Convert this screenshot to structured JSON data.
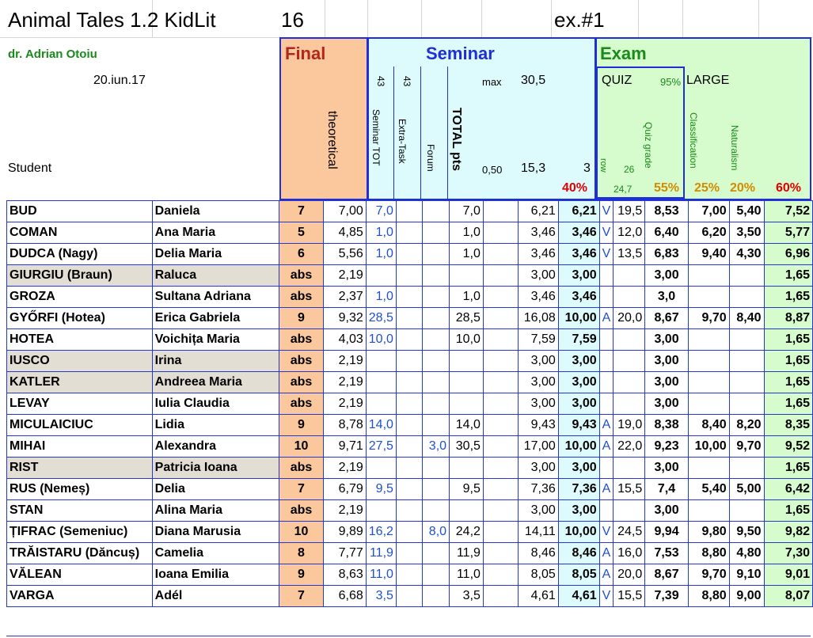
{
  "sheet": {
    "title": "Animal Tales 1.2  KidLit",
    "title_num": "16",
    "exam_id": "ex.#1",
    "teacher": "dr. Adrian Otoiu",
    "date": "20.iun.17",
    "student_label": "Student"
  },
  "headers": {
    "final": "Final",
    "theoretical": "theoretical",
    "seminar": "Seminar",
    "seminar_tot_num": "43",
    "seminar_tot": "Seminar TOT",
    "extra_num": "43",
    "extra_task": "Extra-Task",
    "forum": "Forum",
    "total_pts": "TOTAL pts",
    "max_label": "max",
    "max_value": "30,5",
    "min_ratio": "0,50",
    "mid_value": "15,3",
    "three": "3",
    "seminar_pct": "40%",
    "exam": "Exam",
    "quiz": "QUIZ",
    "quiz_pct_top": "95%",
    "large": "LARGE",
    "row": "row",
    "quiz_26": "26",
    "quiz_grade": "Quiz grade",
    "quiz_247": "24,7",
    "quiz_pct": "55%",
    "classification": "Classification",
    "naturalism": "Naturalism",
    "class_pct": "25%",
    "nat_pct": "20%",
    "exam_pct": "60%"
  },
  "rows": [
    {
      "surname": "BUD",
      "first": "Daniela",
      "final": "7",
      "theo": "7,00",
      "sem": "7,0",
      "extra": "",
      "forum": "",
      "total": "7,0",
      "s1": "6,21",
      "s2": "6,21",
      "q1": "V",
      "q2": "19,5",
      "quiz": "8,53",
      "cls": "7,00",
      "nat": "5,40",
      "fg": "7,52",
      "absent": false
    },
    {
      "surname": "COMAN",
      "first": "Ana Maria",
      "final": "5",
      "theo": "4,85",
      "sem": "1,0",
      "extra": "",
      "forum": "",
      "total": "1,0",
      "s1": "3,46",
      "s2": "3,46",
      "q1": "V",
      "q2": "12,0",
      "quiz": "6,40",
      "cls": "6,20",
      "nat": "3,50",
      "fg": "5,77",
      "absent": false
    },
    {
      "surname": "DUDCA  (Nagy)",
      "first": "Delia Maria",
      "final": "6",
      "theo": "5,56",
      "sem": "1,0",
      "extra": "",
      "forum": "",
      "total": "1,0",
      "s1": "3,46",
      "s2": "3,46",
      "q1": "V",
      "q2": "13,5",
      "quiz": "6,83",
      "cls": "9,40",
      "nat": "4,30",
      "fg": "6,96",
      "absent": false
    },
    {
      "surname": "GIURGIU (Braun)",
      "first": "Raluca",
      "final": "abs",
      "theo": "2,19",
      "sem": "",
      "extra": "",
      "forum": "",
      "total": "",
      "s1": "3,00",
      "s2": "3,00",
      "q1": "",
      "q2": "",
      "quiz": "3,00",
      "cls": "",
      "nat": "",
      "fg": "1,65",
      "absent": true
    },
    {
      "surname": "GROZA",
      "first": "Sultana Adriana",
      "final": "abs",
      "theo": "2,37",
      "sem": "1,0",
      "extra": "",
      "forum": "",
      "total": "1,0",
      "s1": "3,46",
      "s2": "3,46",
      "q1": "",
      "q2": "",
      "quiz": "3,0",
      "cls": "",
      "nat": "",
      "fg": "1,65",
      "absent": false
    },
    {
      "surname": "GYŐRFI (Hotea)",
      "first": "Erica Gabriela",
      "final": "9",
      "theo": "9,32",
      "sem": "28,5",
      "extra": "",
      "forum": "",
      "total": "28,5",
      "s1": "16,08",
      "s2": "10,00",
      "q1": "A",
      "q2": "20,0",
      "quiz": "8,67",
      "cls": "9,70",
      "nat": "8,40",
      "fg": "8,87",
      "absent": false
    },
    {
      "surname": "HOTEA",
      "first": "Voichița Maria",
      "final": "abs",
      "theo": "4,03",
      "sem": "10,0",
      "extra": "",
      "forum": "",
      "total": "10,0",
      "s1": "7,59",
      "s2": "7,59",
      "q1": "",
      "q2": "",
      "quiz": "3,00",
      "cls": "",
      "nat": "",
      "fg": "1,65",
      "absent": false
    },
    {
      "surname": "IUSCO",
      "first": "Irina",
      "final": "abs",
      "theo": "2,19",
      "sem": "",
      "extra": "",
      "forum": "",
      "total": "",
      "s1": "3,00",
      "s2": "3,00",
      "q1": "",
      "q2": "",
      "quiz": "3,00",
      "cls": "",
      "nat": "",
      "fg": "1,65",
      "absent": true
    },
    {
      "surname": "KATLER",
      "first": "Andreea Maria",
      "final": "abs",
      "theo": "2,19",
      "sem": "",
      "extra": "",
      "forum": "",
      "total": "",
      "s1": "3,00",
      "s2": "3,00",
      "q1": "",
      "q2": "",
      "quiz": "3,00",
      "cls": "",
      "nat": "",
      "fg": "1,65",
      "absent": true
    },
    {
      "surname": "LEVAY",
      "first": "Iulia Claudia",
      "final": "abs",
      "theo": "2,19",
      "sem": "",
      "extra": "",
      "forum": "",
      "total": "",
      "s1": "3,00",
      "s2": "3,00",
      "q1": "",
      "q2": "",
      "quiz": "3,00",
      "cls": "",
      "nat": "",
      "fg": "1,65",
      "absent": false
    },
    {
      "surname": "MICULAICIUC",
      "first": "Lidia",
      "final": "9",
      "theo": "8,78",
      "sem": "14,0",
      "extra": "",
      "forum": "",
      "total": "14,0",
      "s1": "9,43",
      "s2": "9,43",
      "q1": "A",
      "q2": "19,0",
      "quiz": "8,38",
      "cls": "8,40",
      "nat": "8,20",
      "fg": "8,35",
      "absent": false
    },
    {
      "surname": "MIHAI",
      "first": "Alexandra",
      "final": "10",
      "theo": "9,71",
      "sem": "27,5",
      "extra": "",
      "forum": "3,0",
      "total": "30,5",
      "s1": "17,00",
      "s2": "10,00",
      "q1": "A",
      "q2": "22,0",
      "quiz": "9,23",
      "cls": "10,00",
      "nat": "9,70",
      "fg": "9,52",
      "absent": false
    },
    {
      "surname": "RIST",
      "first": "Patricia Ioana",
      "final": "abs",
      "theo": "2,19",
      "sem": "",
      "extra": "",
      "forum": "",
      "total": "",
      "s1": "3,00",
      "s2": "3,00",
      "q1": "",
      "q2": "",
      "quiz": "3,00",
      "cls": "",
      "nat": "",
      "fg": "1,65",
      "absent": true
    },
    {
      "surname": "RUS (Nemeș)",
      "first": "Delia",
      "final": "7",
      "theo": "6,79",
      "sem": "9,5",
      "extra": "",
      "forum": "",
      "total": "9,5",
      "s1": "7,36",
      "s2": "7,36",
      "q1": "A",
      "q2": "15,5",
      "quiz": "7,4",
      "cls": "5,40",
      "nat": "5,00",
      "fg": "6,42",
      "absent": false
    },
    {
      "surname": "STAN",
      "first": "Alina Maria",
      "final": "abs",
      "theo": "2,19",
      "sem": "",
      "extra": "",
      "forum": "",
      "total": "",
      "s1": "3,00",
      "s2": "3,00",
      "q1": "",
      "q2": "",
      "quiz": "3,00",
      "cls": "",
      "nat": "",
      "fg": "1,65",
      "absent": false
    },
    {
      "surname": "ȚIFRAC (Semeniuc)",
      "first": "Diana Marusia",
      "final": "10",
      "theo": "9,89",
      "sem": "16,2",
      "extra": "",
      "forum": "8,0",
      "total": "24,2",
      "s1": "14,11",
      "s2": "10,00",
      "q1": "V",
      "q2": "24,5",
      "quiz": "9,94",
      "cls": "9,80",
      "nat": "9,50",
      "fg": "9,82",
      "absent": false
    },
    {
      "surname": "TRĂISTARU (Dăncuș)",
      "first": "Camelia",
      "final": "8",
      "theo": "7,77",
      "sem": "11,9",
      "extra": "",
      "forum": "",
      "total": "11,9",
      "s1": "8,46",
      "s2": "8,46",
      "q1": "A",
      "q2": "16,0",
      "quiz": "7,53",
      "cls": "8,80",
      "nat": "4,80",
      "fg": "7,30",
      "absent": false
    },
    {
      "surname": "VĂLEAN",
      "first": "Ioana Emilia",
      "final": "9",
      "theo": "8,63",
      "sem": "11,0",
      "extra": "",
      "forum": "",
      "total": "11,0",
      "s1": "8,05",
      "s2": "8,05",
      "q1": "A",
      "q2": "20,0",
      "quiz": "8,67",
      "cls": "9,70",
      "nat": "9,10",
      "fg": "9,01",
      "absent": false
    },
    {
      "surname": "VARGA",
      "first": "Adél",
      "final": "7",
      "theo": "6,68",
      "sem": "3,5",
      "extra": "",
      "forum": "",
      "total": "3,5",
      "s1": "4,61",
      "s2": "4,61",
      "q1": "V",
      "q2": "15,5",
      "quiz": "7,39",
      "cls": "8,80",
      "nat": "9,00",
      "fg": "8,07",
      "absent": false
    }
  ],
  "colors": {
    "final_bg": "#fbc79d",
    "seminar_bg": "#ddfbfd",
    "exam_bg": "#d6fbcd",
    "absent_bg": "#e3ded4",
    "border_blue": "#1f2ed6",
    "seminar_text": "#1f2ed6",
    "exam_text": "#1a8a1a",
    "final_text": "#b3261e",
    "pct_red": "#e00000",
    "pct_orange": "#d48b00"
  }
}
